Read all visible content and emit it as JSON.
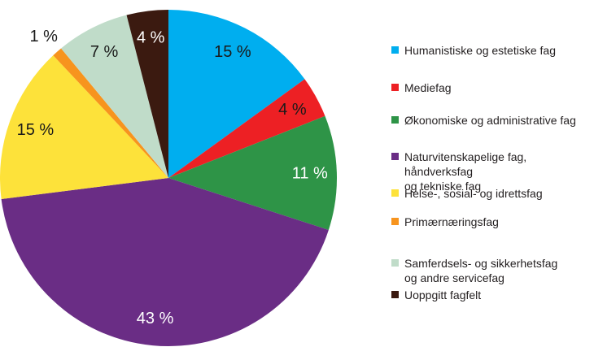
{
  "figure": {
    "background_color": "#ffffff",
    "legend_position": "right"
  },
  "chart_data": {
    "type": "pie",
    "title": "",
    "unit": "%",
    "direction": "clockwise",
    "start_angle_deg": 0,
    "legend_position": "right",
    "slices": [
      {
        "label": "Humanistiske og estetiske fag",
        "legend_lines": [
          "Humanistiske og estetiske fag"
        ],
        "value": 15,
        "display": "15 %",
        "color": "#00AEEF",
        "label_color": "#1a1a1a",
        "label_inside": true
      },
      {
        "label": "Mediefag",
        "legend_lines": [
          "Mediefag"
        ],
        "value": 4,
        "display": "4 %",
        "color": "#ED2024",
        "label_color": "#1a1a1a",
        "label_inside": true
      },
      {
        "label": "Økonomiske og administrative fag",
        "legend_lines": [
          "Økonomiske og administrative fag"
        ],
        "value": 11,
        "display": "11 %",
        "color": "#2E9447",
        "label_color": "#ffffff",
        "label_inside": true
      },
      {
        "label": "Naturvitenskapelige fag, håndverksfag og tekniske fag",
        "legend_lines": [
          "Naturvitenskapelige fag, håndverksfag",
          "og tekniske fag"
        ],
        "value": 43,
        "display": "43 %",
        "color": "#6A2D85",
        "label_color": "#ffffff",
        "label_inside": true
      },
      {
        "label": "Helse-, sosial- og idrettsfag",
        "legend_lines": [
          "Helse-, sosial- og idrettsfag"
        ],
        "value": 15,
        "display": "15 %",
        "color": "#FDE23A",
        "label_color": "#1a1a1a",
        "label_inside": true
      },
      {
        "label": "Primærnæringsfag",
        "legend_lines": [
          "Primærnæringsfag"
        ],
        "value": 1,
        "display": "1 %",
        "color": "#F7941E",
        "label_color": "#1a1a1a",
        "label_inside": false
      },
      {
        "label": "Samferdsels- og sikkerhetsfag og andre servicefag",
        "legend_lines": [
          "Samferdsels- og sikkerhetsfag",
          "og andre servicefag"
        ],
        "value": 7,
        "display": "7 %",
        "color": "#C0DCC9",
        "label_color": "#1a1a1a",
        "label_inside": true
      },
      {
        "label": "Uoppgitt fagfelt",
        "legend_lines": [
          "Uoppgitt fagfelt"
        ],
        "value": 4,
        "display": "4 %",
        "color": "#3B1A10",
        "label_color": "#ffffff",
        "label_inside": true
      }
    ]
  }
}
